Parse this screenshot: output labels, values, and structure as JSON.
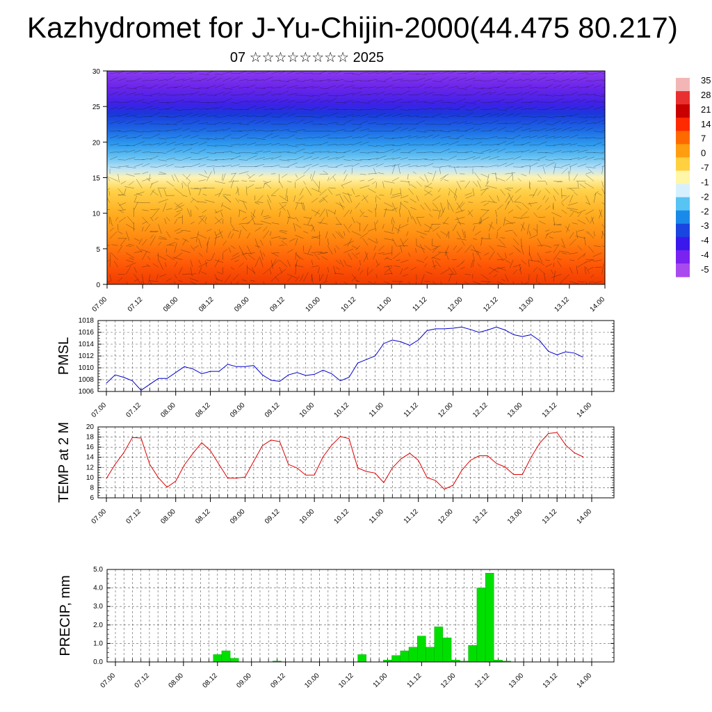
{
  "header": {
    "title": "Kazhydromet for J-Yu-Chijin-2000(44.475 80.217)",
    "subtitle": "07 ☆☆☆☆☆☆☆☆ 2025"
  },
  "time_labels": [
    "07.00",
    "07.12",
    "08.00",
    "08.12",
    "09.00",
    "09.12",
    "10.00",
    "10.12",
    "11.00",
    "11.12",
    "12.00",
    "12.12",
    "13.00",
    "13.12",
    "14.00"
  ],
  "colors": {
    "pmsl_line": "#0000cc",
    "temp_line": "#dd0000",
    "precip_bar": "#00e000",
    "grid": "#555555"
  },
  "chart_data": [
    {
      "type": "heatmap",
      "title": "",
      "ylabel": "",
      "x_range": [
        "07.00",
        "14.00"
      ],
      "ylim": [
        0,
        30
      ],
      "y_ticks": [
        "0",
        "5",
        "10",
        "15",
        "20",
        "25",
        "30"
      ],
      "colorbar_labels": [
        "35",
        "28",
        "21",
        "14",
        "7",
        "0",
        "-7",
        "-1",
        "-2",
        "-2",
        "-3",
        "-4",
        "-4",
        "-5"
      ],
      "colorbar_scale": [
        "#f3b6b6",
        "#e83030",
        "#c80000",
        "#ff2a00",
        "#ff6a00",
        "#ff9e10",
        "#ffd040",
        "#fff6a8",
        "#d6f0ff",
        "#58c4f4",
        "#1a8aea",
        "#1a45e0",
        "#3a18ec",
        "#7a22f0",
        "#a84aee"
      ],
      "overlay": "wind vectors"
    },
    {
      "type": "line",
      "ylabel": "PMSL",
      "ylim": [
        1006,
        1018
      ],
      "y_ticks": [
        "1006",
        "1008",
        "1010",
        "1012",
        "1014",
        "1016",
        "1018"
      ],
      "grid": true,
      "x_hours": [
        0,
        3,
        6,
        9,
        12,
        15,
        18,
        21,
        24,
        27,
        30,
        33,
        36,
        39,
        42,
        45,
        48,
        51,
        54,
        57,
        60,
        63,
        66,
        69,
        72,
        75,
        78,
        81,
        84,
        87,
        90,
        93,
        96,
        99,
        102,
        105,
        108,
        111,
        114,
        117,
        120,
        123,
        126,
        129,
        132,
        135,
        138,
        141,
        144,
        147,
        150,
        153,
        156,
        159,
        162,
        165
      ],
      "values": [
        1007.4,
        1008.8,
        1008.4,
        1007.8,
        1006.2,
        1007.2,
        1008.2,
        1008.2,
        1009.2,
        1010.2,
        1009.8,
        1009.0,
        1009.4,
        1009.4,
        1010.6,
        1010.2,
        1010.2,
        1010.4,
        1008.8,
        1007.9,
        1007.7,
        1008.8,
        1009.2,
        1008.7,
        1008.9,
        1009.6,
        1009.0,
        1007.8,
        1008.4,
        1010.8,
        1011.4,
        1012.0,
        1014.1,
        1014.7,
        1014.4,
        1013.8,
        1014.7,
        1016.3,
        1016.6,
        1016.6,
        1016.7,
        1016.9,
        1016.5,
        1016.0,
        1016.4,
        1016.9,
        1016.4,
        1015.6,
        1015.3,
        1015.6,
        1014.6,
        1012.8,
        1012.2,
        1012.7,
        1012.5,
        1011.8
      ]
    },
    {
      "type": "line",
      "ylabel": "TEMP at 2 M",
      "ylim": [
        6,
        20
      ],
      "y_ticks": [
        "6",
        "8",
        "10",
        "12",
        "14",
        "16",
        "18",
        "20"
      ],
      "grid": true,
      "x_hours": [
        0,
        3,
        6,
        9,
        12,
        15,
        18,
        21,
        24,
        27,
        30,
        33,
        36,
        39,
        42,
        45,
        48,
        51,
        54,
        57,
        60,
        63,
        66,
        69,
        72,
        75,
        78,
        81,
        84,
        87,
        90,
        93,
        96,
        99,
        102,
        105,
        108,
        111,
        114,
        117,
        120,
        123,
        126,
        129,
        132,
        135,
        138,
        141,
        144,
        147,
        150,
        153,
        156,
        159,
        162,
        165
      ],
      "values": [
        9.8,
        12.6,
        14.9,
        17.9,
        17.8,
        12.6,
        10.0,
        8.1,
        9.3,
        12.5,
        14.8,
        16.9,
        15.3,
        12.6,
        9.9,
        9.9,
        10.1,
        13.2,
        16.3,
        17.4,
        17.1,
        12.6,
        11.9,
        10.5,
        10.5,
        14.1,
        16.4,
        18.1,
        17.7,
        11.9,
        11.2,
        10.9,
        9.0,
        11.9,
        13.7,
        14.8,
        13.4,
        10.0,
        9.4,
        7.7,
        8.5,
        11.4,
        13.4,
        14.3,
        14.3,
        12.8,
        12.1,
        10.6,
        10.6,
        14.0,
        16.8,
        18.7,
        18.9,
        16.4,
        14.9,
        14.1
      ]
    },
    {
      "type": "bar",
      "ylabel": "PRECIP, mm",
      "ylim": [
        0.0,
        5.0
      ],
      "y_ticks": [
        "0.0",
        "1.0",
        "2.0",
        "3.0",
        "4.0",
        "5.0"
      ],
      "grid": true,
      "x_hours": [
        36,
        39,
        42,
        57,
        87,
        96,
        99,
        102,
        105,
        108,
        111,
        114,
        117,
        120,
        123,
        126,
        129,
        132,
        135,
        138
      ],
      "values": [
        0.4,
        0.6,
        0.2,
        0.05,
        0.4,
        0.1,
        0.35,
        0.6,
        0.8,
        1.4,
        0.8,
        1.9,
        1.3,
        0.1,
        0.05,
        0.9,
        4.0,
        4.8,
        0.1,
        0.05
      ]
    }
  ]
}
